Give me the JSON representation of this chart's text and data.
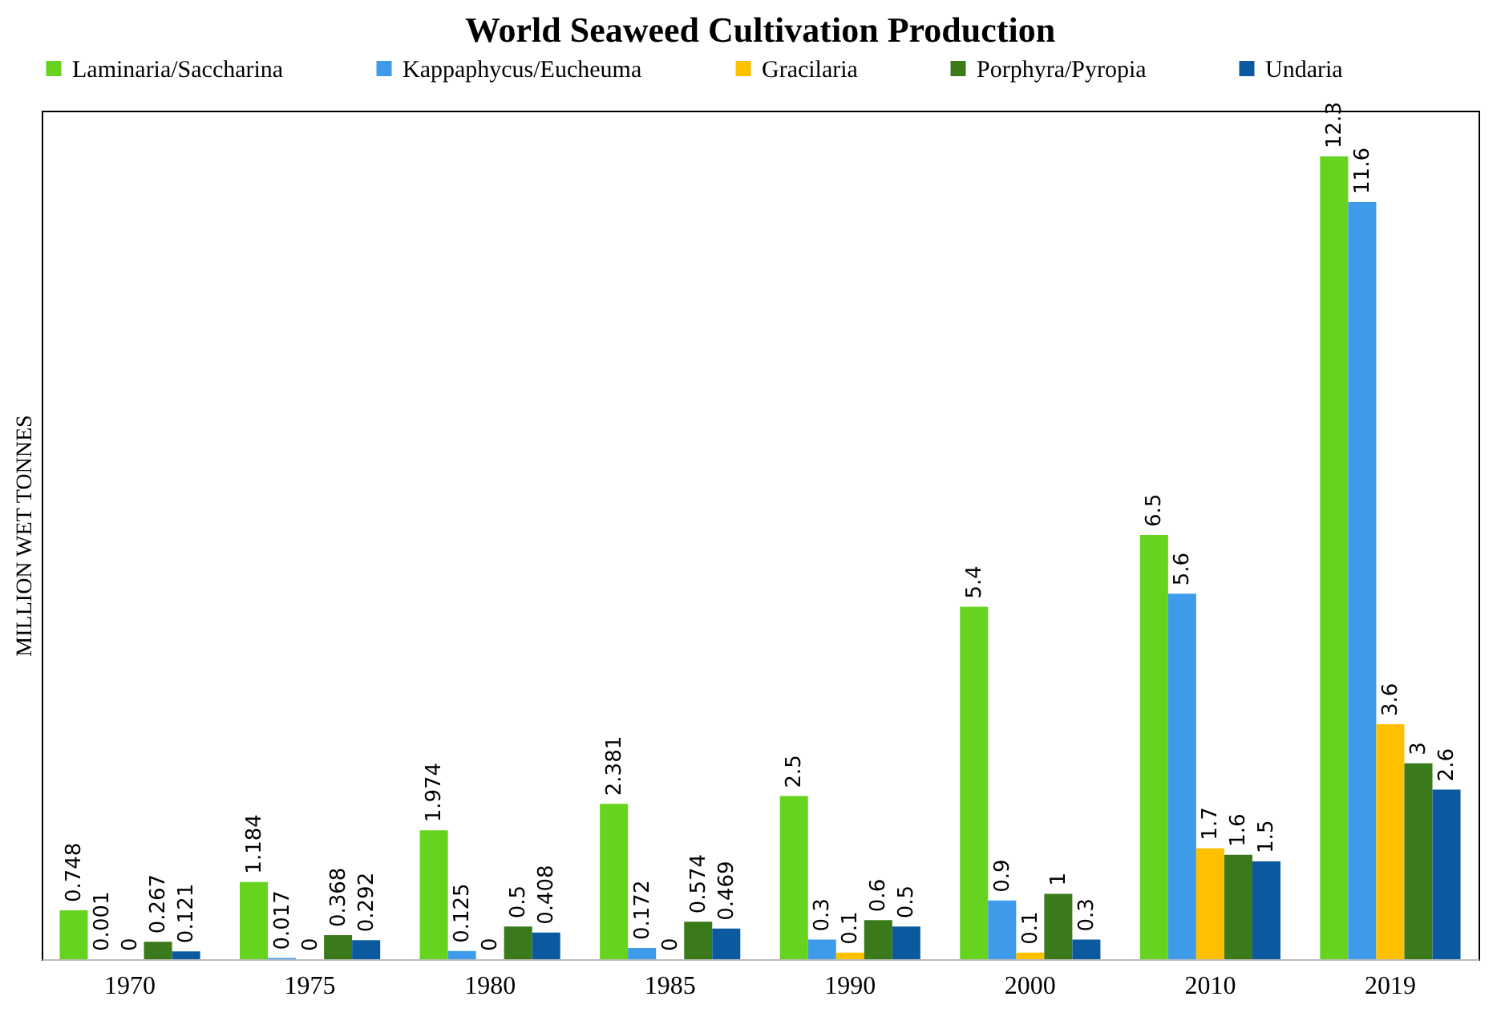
{
  "chart_data": {
    "type": "bar",
    "title": "World Seaweed Cultivation Production",
    "ylabel": "MILLION WET TONNES",
    "categories": [
      "1970",
      "1975",
      "1980",
      "1985",
      "1990",
      "2000",
      "2010",
      "2019"
    ],
    "series": [
      {
        "name": "Laminaria/Saccharina",
        "color": "#66d41e",
        "values": [
          0.748,
          1.184,
          1.974,
          2.381,
          2.5,
          5.4,
          6.5,
          12.3
        ]
      },
      {
        "name": "Kappaphycus/Eucheuma",
        "color": "#3d9be9",
        "values": [
          0.001,
          0.017,
          0.125,
          0.172,
          0.3,
          0.9,
          5.6,
          11.6
        ]
      },
      {
        "name": "Gracilaria",
        "color": "#ffc000",
        "values": [
          0,
          0,
          0,
          0,
          0.1,
          0.1,
          1.7,
          3.6
        ]
      },
      {
        "name": "Porphyra/Pyropia",
        "color": "#3a7a1a",
        "values": [
          0.267,
          0.368,
          0.5,
          0.574,
          0.6,
          1,
          1.6,
          3
        ]
      },
      {
        "name": "Undaria",
        "color": "#0b5aa0",
        "values": [
          0.121,
          0.292,
          0.408,
          0.469,
          0.5,
          0.3,
          1.5,
          2.6
        ]
      }
    ],
    "data_labels": true,
    "legend": "top"
  }
}
